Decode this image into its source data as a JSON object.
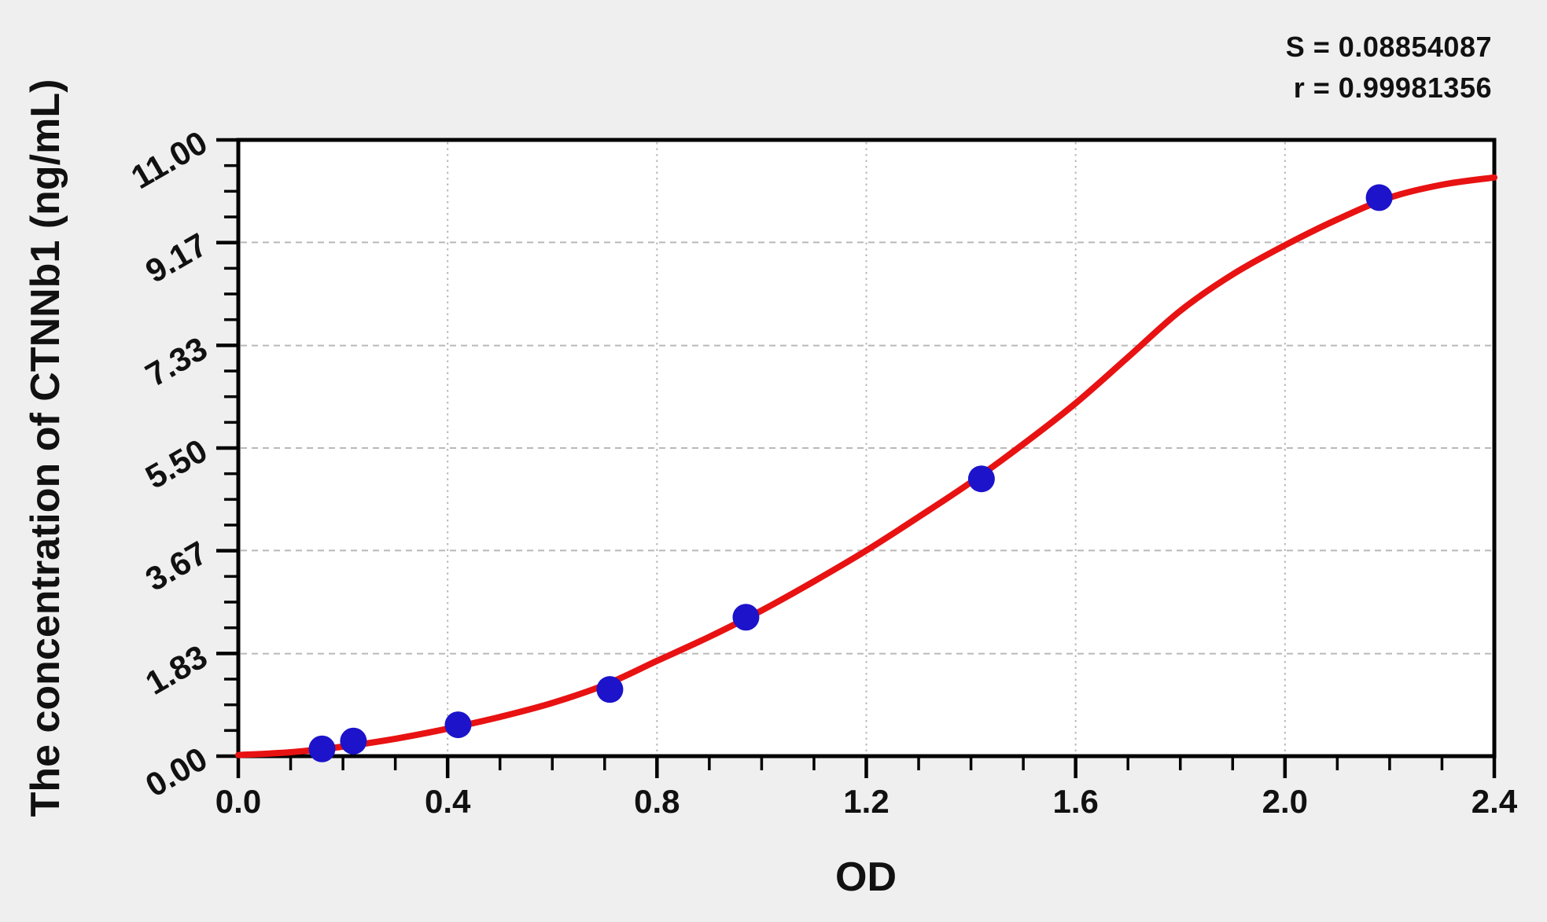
{
  "annotations": {
    "s_line": "S = 0.08854087",
    "r_line": "r = 0.99981356"
  },
  "chart_data": {
    "type": "scatter",
    "title": "",
    "xlabel": "OD",
    "ylabel": "The concentration of CTNNb1 (ng/mL)",
    "xlim": [
      0.0,
      2.4
    ],
    "ylim": [
      0.0,
      11.0
    ],
    "x_tick_labels": [
      "0.0",
      "0.4",
      "0.8",
      "1.2",
      "1.6",
      "2.0",
      "2.4"
    ],
    "y_tick_labels": [
      "0.00",
      "1.83",
      "3.67",
      "5.50",
      "7.33",
      "9.17",
      "11.00"
    ],
    "x_minor_ticks_per_major": 4,
    "y_minor_ticks_per_major": 4,
    "grid": {
      "horizontal": "dashed",
      "vertical": "dotted",
      "on": true
    },
    "legend_position": "none",
    "stats": {
      "S": 0.08854087,
      "r": 0.99981356
    },
    "series": [
      {
        "name": "standard data points",
        "type": "scatter",
        "points": [
          [
            0.16,
            0.13
          ],
          [
            0.22,
            0.27
          ],
          [
            0.42,
            0.56
          ],
          [
            0.71,
            1.19
          ],
          [
            0.97,
            2.48
          ],
          [
            1.42,
            4.95
          ],
          [
            2.18,
            9.97
          ]
        ]
      },
      {
        "name": "fitted standard curve",
        "type": "line",
        "points": [
          [
            0.0,
            0.02
          ],
          [
            0.1,
            0.07
          ],
          [
            0.2,
            0.17
          ],
          [
            0.3,
            0.31
          ],
          [
            0.4,
            0.49
          ],
          [
            0.5,
            0.7
          ],
          [
            0.6,
            0.95
          ],
          [
            0.7,
            1.27
          ],
          [
            0.8,
            1.7
          ],
          [
            0.9,
            2.13
          ],
          [
            1.0,
            2.6
          ],
          [
            1.1,
            3.12
          ],
          [
            1.2,
            3.67
          ],
          [
            1.3,
            4.27
          ],
          [
            1.4,
            4.89
          ],
          [
            1.5,
            5.57
          ],
          [
            1.6,
            6.3
          ],
          [
            1.7,
            7.12
          ],
          [
            1.8,
            7.95
          ],
          [
            1.9,
            8.6
          ],
          [
            2.0,
            9.12
          ],
          [
            2.1,
            9.58
          ],
          [
            2.2,
            9.97
          ],
          [
            2.3,
            10.2
          ],
          [
            2.4,
            10.33
          ]
        ]
      }
    ],
    "colors": {
      "curve": "#e81212",
      "point": "#1c13cb",
      "grid": "#b9b9b9",
      "axis": "#000000",
      "plot_bg": "#ffffff",
      "page_bg": "#efefef",
      "text": "#111111"
    }
  }
}
